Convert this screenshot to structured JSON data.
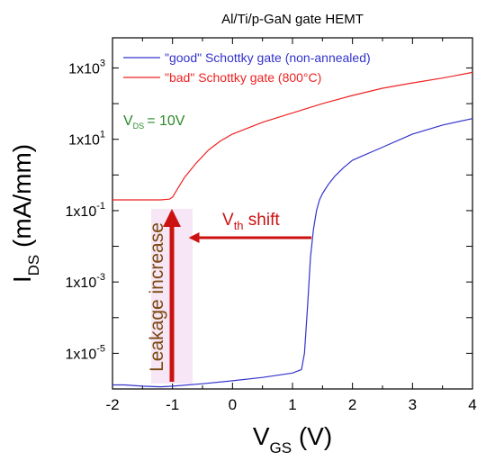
{
  "chart_data": {
    "type": "line",
    "title": "Al/Ti/p-GaN gate HEMT",
    "xlabel_main": "V",
    "xlabel_sub": "GS",
    "xlabel_unit": " (V)",
    "ylabel_main": "I",
    "ylabel_sub": "DS",
    "ylabel_unit": " (mA/mm)",
    "y_scale": "log",
    "xlim": [
      -2,
      4
    ],
    "ylim": [
      1e-06,
      7000.0
    ],
    "x_ticks": [
      {
        "v": -2,
        "label": "-2"
      },
      {
        "v": -1,
        "label": "-1"
      },
      {
        "v": 0,
        "label": "0"
      },
      {
        "v": 1,
        "label": "1"
      },
      {
        "v": 2,
        "label": "2"
      },
      {
        "v": 3,
        "label": "3"
      },
      {
        "v": 4,
        "label": "4"
      }
    ],
    "y_ticks": [
      {
        "v": 1e-05,
        "base": "1x10",
        "exp": "-5"
      },
      {
        "v": 0.001,
        "base": "1x10",
        "exp": "-3"
      },
      {
        "v": 0.1,
        "base": "1x10",
        "exp": "-1"
      },
      {
        "v": 10.0,
        "base": "1x10",
        "exp": "1"
      },
      {
        "v": 1000.0,
        "base": "1x10",
        "exp": "3"
      }
    ],
    "legend_position": "top-left",
    "series": [
      {
        "name": "\"good\" Schottky gate (non-annealed)",
        "color": "#3333cc",
        "x": [
          -2,
          -1.8,
          -1.5,
          -1.2,
          -1.0,
          -0.5,
          0,
          0.5,
          1.0,
          1.15,
          1.2,
          1.25,
          1.3,
          1.35,
          1.4,
          1.45,
          1.5,
          1.6,
          1.7,
          1.85,
          2.0,
          2.5,
          3.0,
          3.5,
          4.0
        ],
        "y": [
          1.3e-06,
          1.3e-06,
          1.2e-06,
          1.15e-06,
          1.2e-06,
          1.4e-06,
          1.7e-06,
          2.1e-06,
          2.8e-06,
          3.5e-06,
          1e-05,
          0.0002,
          0.005,
          0.03,
          0.1,
          0.2,
          0.3,
          0.55,
          0.9,
          1.6,
          2.6,
          6,
          14,
          25,
          38
        ]
      },
      {
        "name": "\"bad\" Schottky gate (800°C)",
        "color": "#ee2222",
        "x": [
          -2,
          -1.5,
          -1.2,
          -1.05,
          -1.0,
          -0.9,
          -0.8,
          -0.6,
          -0.4,
          -0.2,
          0,
          0.5,
          1.0,
          1.5,
          2.0,
          2.5,
          3.0,
          3.5,
          4.0
        ],
        "y": [
          0.2,
          0.2,
          0.2,
          0.21,
          0.24,
          0.45,
          0.85,
          2.2,
          5,
          9,
          14,
          30,
          55,
          100,
          170,
          270,
          380,
          520,
          750
        ]
      }
    ],
    "annotations": {
      "vds_main": "V",
      "vds_sub": "DS",
      "vds_value": "= 10V",
      "vth_main": "V",
      "vth_sub": "th",
      "vth_rest": " shift",
      "leakage": "Leakage increase"
    },
    "colors": {
      "axis": "#000000",
      "vds": "#2a8a2a",
      "arrow": "#cc1111",
      "leakage_text": "#7a4a10",
      "leakage_glow": "#f7e6f5"
    }
  }
}
